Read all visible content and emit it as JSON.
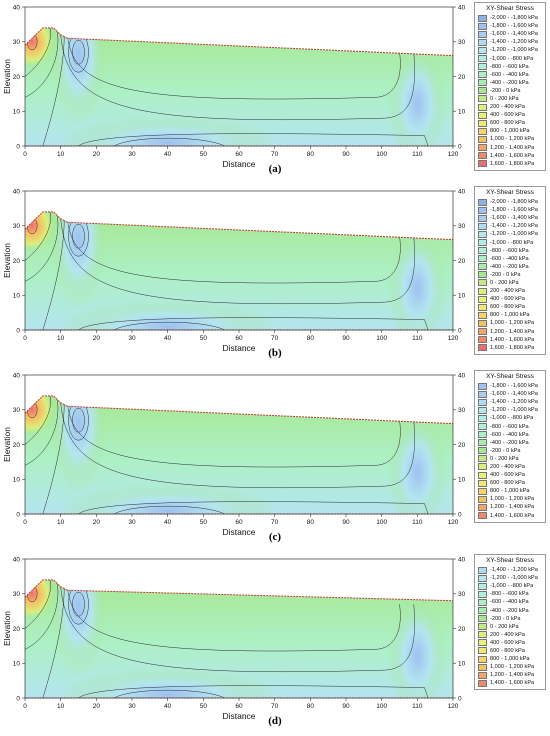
{
  "chart_data": [
    {
      "type": "heatmap",
      "caption": "(a)",
      "xlabel": "Distance",
      "ylabel": "Elevation",
      "xlim": [
        0,
        120
      ],
      "ylim": [
        0,
        40
      ],
      "x_ticks": [
        "0",
        "10",
        "20",
        "30",
        "40",
        "50",
        "60",
        "70",
        "80",
        "90",
        "100",
        "110",
        "120"
      ],
      "y_ticks": [
        "0",
        "10",
        "20",
        "30",
        "40"
      ],
      "legend_title": "XY-Shear Stress",
      "legend": [
        "-2,000 - -1,800 kPa",
        "-1,800 - -1,600 kPa",
        "-1,600 - -1,400 kPa",
        "-1,400 - -1,200 kPa",
        "-1,200 - -1,000 kPa",
        "-1,000 - -800 kPa",
        "-800 - -600 kPa",
        "-600 - -400 kPa",
        "-400 - -200 kPa",
        "-200 - 0 kPa",
        "0 - 200 kPa",
        "200 - 400 kPa",
        "400 - 600 kPa",
        "600 - 800 kPa",
        "800 - 1,000 kPa",
        "1,000 - 1,200 kPa",
        "1,200 - 1,400 kPa",
        "1,400 - 1,600 kPa",
        "1,600 - 1,800 kPa"
      ],
      "legend_colors": [
        "#8fb3e8",
        "#9ec1ef",
        "#a9cdf2",
        "#b1daf3",
        "#b4e5f0",
        "#b3ecea",
        "#b2f0dc",
        "#adf0c6",
        "#a7eead",
        "#a6e892",
        "#c1ea86",
        "#dcef7e",
        "#ecef7a",
        "#f3e775",
        "#f5d66e",
        "#f5bf66",
        "#f4a464",
        "#f18a67",
        "#ec6f6f"
      ],
      "surface": [
        [
          0,
          29
        ],
        [
          3,
          32
        ],
        [
          5,
          34
        ],
        [
          8,
          34
        ],
        [
          10,
          32
        ],
        [
          12,
          31
        ],
        [
          120,
          26
        ]
      ]
    },
    {
      "type": "heatmap",
      "caption": "(b)",
      "xlabel": "Distance",
      "ylabel": "Elevation",
      "xlim": [
        0,
        120
      ],
      "ylim": [
        0,
        40
      ],
      "x_ticks": [
        "0",
        "10",
        "20",
        "30",
        "40",
        "50",
        "60",
        "70",
        "80",
        "90",
        "100",
        "110",
        "120"
      ],
      "y_ticks": [
        "0",
        "10",
        "20",
        "30",
        "40"
      ],
      "legend_title": "XY-Shear Stress",
      "legend": [
        "-2,000 - -1,800 kPa",
        "-1,800 - -1,600 kPa",
        "-1,600 - -1,400 kPa",
        "-1,400 - -1,200 kPa",
        "-1,200 - -1,000 kPa",
        "-1,000 - -800 kPa",
        "-800 - -600 kPa",
        "-600 - -400 kPa",
        "-400 - -200 kPa",
        "-200 - 0 kPa",
        "0 - 200 kPa",
        "200 - 400 kPa",
        "400 - 600 kPa",
        "600 - 800 kPa",
        "800 - 1,000 kPa",
        "1,000 - 1,200 kPa",
        "1,200 - 1,400 kPa",
        "1,400 - 1,600 kPa",
        "1,600 - 1,800 kPa"
      ],
      "legend_colors": [
        "#8fb3e8",
        "#9ec1ef",
        "#a9cdf2",
        "#b1daf3",
        "#b4e5f0",
        "#b3ecea",
        "#b2f0dc",
        "#adf0c6",
        "#a7eead",
        "#a6e892",
        "#c1ea86",
        "#dcef7e",
        "#ecef7a",
        "#f3e775",
        "#f5d66e",
        "#f5bf66",
        "#f4a464",
        "#f18a67",
        "#ec6f6f"
      ],
      "surface": [
        [
          0,
          29
        ],
        [
          3,
          32
        ],
        [
          5,
          34
        ],
        [
          8,
          34
        ],
        [
          10,
          32
        ],
        [
          12,
          31
        ],
        [
          120,
          26
        ]
      ]
    },
    {
      "type": "heatmap",
      "caption": "(c)",
      "xlabel": "Distance",
      "ylabel": "Elevation",
      "xlim": [
        0,
        120
      ],
      "ylim": [
        0,
        40
      ],
      "x_ticks": [
        "0",
        "10",
        "20",
        "30",
        "40",
        "50",
        "60",
        "70",
        "80",
        "90",
        "100",
        "110",
        "120"
      ],
      "y_ticks": [
        "0",
        "10",
        "20",
        "30",
        "40"
      ],
      "legend_title": "XY-Shear Stress",
      "legend": [
        "-1,800 - -1,600 kPa",
        "-1,600 - -1,400 kPa",
        "-1,400 - -1,200 kPa",
        "-1,200 - -1,000 kPa",
        "-1,000 - -800 kPa",
        "-800 - -600 kPa",
        "-600 - -400 kPa",
        "-400 - -200 kPa",
        "-200 - 0 kPa",
        "0 - 200 kPa",
        "200 - 400 kPa",
        "400 - 600 kPa",
        "600 - 800 kPa",
        "800 - 1,000 kPa",
        "1,000 - 1,200 kPa",
        "1,200 - 1,400 kPa",
        "1,400 - 1,600 kPa"
      ],
      "legend_colors": [
        "#9ec1ef",
        "#a9cdf2",
        "#b1daf3",
        "#b4e5f0",
        "#b3ecea",
        "#b2f0dc",
        "#adf0c6",
        "#a7eead",
        "#a6e892",
        "#c1ea86",
        "#dcef7e",
        "#ecef7a",
        "#f3e775",
        "#f5d66e",
        "#f5bf66",
        "#f4a464",
        "#f18a67"
      ],
      "surface": [
        [
          0,
          29
        ],
        [
          3,
          32
        ],
        [
          5,
          34
        ],
        [
          8,
          34
        ],
        [
          10,
          32
        ],
        [
          12,
          31
        ],
        [
          120,
          26
        ]
      ]
    },
    {
      "type": "heatmap",
      "caption": "(d)",
      "xlabel": "Distance",
      "ylabel": "Elevation",
      "xlim": [
        0,
        120
      ],
      "ylim": [
        0,
        40
      ],
      "x_ticks": [
        "0",
        "10",
        "20",
        "30",
        "40",
        "50",
        "60",
        "70",
        "80",
        "90",
        "100",
        "110",
        "120"
      ],
      "y_ticks": [
        "0",
        "10",
        "20",
        "30",
        "40"
      ],
      "legend_title": "XY-Shear Stress",
      "legend": [
        "-1,400 - -1,200 kPa",
        "-1,200 - -1,000 kPa",
        "-1,000 - -800 kPa",
        "-800 - -600 kPa",
        "-600 - -400 kPa",
        "-400 - -200 kPa",
        "-200 - 0 kPa",
        "0 - 200 kPa",
        "200 - 400 kPa",
        "400 - 600 kPa",
        "600 - 800 kPa",
        "800 - 1,000 kPa",
        "1,000 - 1,200 kPa",
        "1,200 - 1,400 kPa",
        "1,400 - 1,600 kPa"
      ],
      "legend_colors": [
        "#b1daf3",
        "#b4e5f0",
        "#b3ecea",
        "#b2f0dc",
        "#adf0c6",
        "#a7eead",
        "#a6e892",
        "#c1ea86",
        "#dcef7e",
        "#ecef7a",
        "#f3e775",
        "#f5d66e",
        "#f5bf66",
        "#f4a464",
        "#f18a67"
      ],
      "surface": [
        [
          0,
          29
        ],
        [
          3,
          32
        ],
        [
          5,
          34
        ],
        [
          8,
          34
        ],
        [
          10,
          32
        ],
        [
          12,
          31
        ],
        [
          120,
          28
        ]
      ]
    }
  ]
}
